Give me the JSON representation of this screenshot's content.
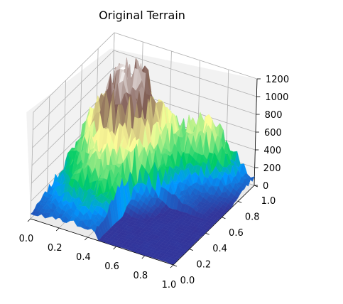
{
  "chart_data": {
    "type": "surface",
    "title": "Original Terrain",
    "xlabel": "",
    "ylabel": "",
    "zlabel": "",
    "colormap": "terrain",
    "xlim": [
      0,
      1
    ],
    "ylim": [
      0,
      1
    ],
    "zlim": [
      0,
      1200
    ],
    "x_ticks": [
      "0.0",
      "0.2",
      "0.4",
      "0.6",
      "0.8",
      "1.0"
    ],
    "y_ticks": [
      "0.0",
      "0.2",
      "0.4",
      "0.6",
      "0.8",
      "1.0"
    ],
    "z_ticks": [
      "0",
      "200",
      "400",
      "600",
      "800",
      "1000",
      "1200"
    ],
    "grid": true,
    "surface_description": {
      "peak_elevation_approx": 1200,
      "peak_location_xy": [
        0.25,
        0.75
      ],
      "flat_region": "x > 0.5 and y < 0.5 near elevation 0"
    }
  }
}
